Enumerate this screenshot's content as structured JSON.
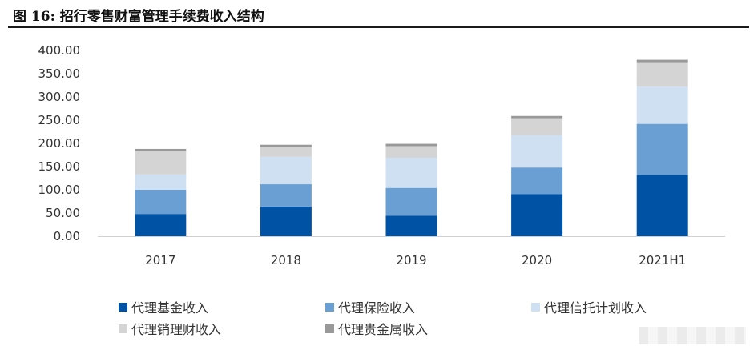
{
  "figure": {
    "title": "图 16: 招行零售财富管理手续费收入结构"
  },
  "chart_data": {
    "type": "bar",
    "stacked": true,
    "title": "",
    "xlabel": "",
    "ylabel": "",
    "categories": [
      "2017",
      "2018",
      "2019",
      "2020",
      "2021H1"
    ],
    "ylim": [
      0,
      400
    ],
    "yticks": [
      "0.00",
      "50.00",
      "100.00",
      "150.00",
      "200.00",
      "250.00",
      "300.00",
      "350.00",
      "400.00"
    ],
    "grid": false,
    "legend_position": "bottom",
    "series": [
      {
        "name": "代理基金收入",
        "color": "#0052a5",
        "values": [
          48,
          64,
          44,
          91,
          132
        ]
      },
      {
        "name": "代理保险收入",
        "color": "#6a9fd4",
        "values": [
          52,
          48,
          60,
          57,
          110
        ]
      },
      {
        "name": "代理信托计划收入",
        "color": "#cfe0f2",
        "values": [
          33,
          59,
          65,
          70,
          80
        ]
      },
      {
        "name": "代理销理财收入",
        "color": "#d4d4d4",
        "values": [
          50,
          21,
          25,
          36,
          51
        ]
      },
      {
        "name": "代理贵金属收入",
        "color": "#999999",
        "values": [
          5,
          5,
          5,
          5,
          7
        ]
      }
    ]
  }
}
